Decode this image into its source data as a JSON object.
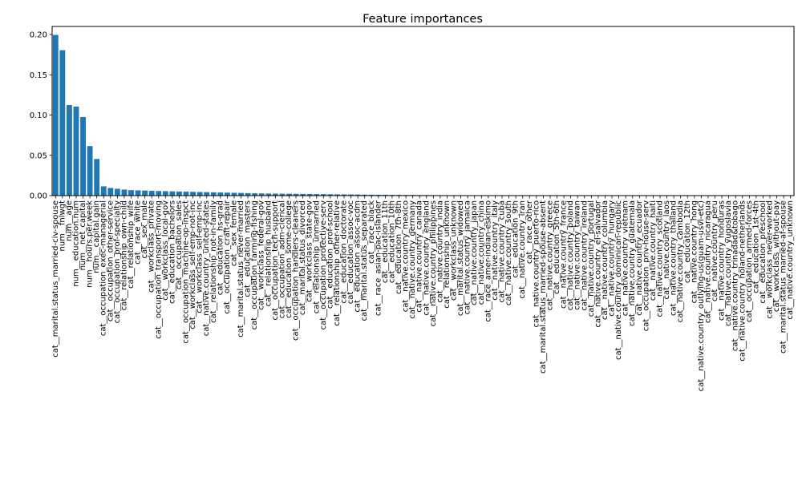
{
  "chart_data": {
    "type": "bar",
    "title": "Feature importances",
    "xlabel": "",
    "ylabel": "",
    "ylim": [
      0,
      0.21
    ],
    "yticks": [
      "0.00",
      "0.05",
      "0.10",
      "0.15",
      "0.20"
    ],
    "grid": false,
    "legend": "none",
    "bar_color": "#1f77b4",
    "categories": [
      "cat__marital.status_married-civ-spouse",
      "num__fnlwgt",
      "num__age",
      "num__education.num",
      "num__net_capital",
      "num__hours.per.week",
      "num__capital.gain",
      "cat__occupation_exec-managerial",
      "cat__occupation_other-service",
      "cat__occupation_prof-specialty",
      "cat__relationship_own-child",
      "cat__relationship_wife",
      "cat__race_white",
      "cat__sex_male",
      "cat__workclass_private",
      "cat__occupation_transport-moving",
      "cat__workclass_local-gov",
      "cat__education_bachelors",
      "cat__occupation_sales",
      "cat__occupation_machine-op-inspct",
      "cat__workclass_self-emp-not-inc",
      "cat__workclass_self-emp-inc",
      "cat__native.country_united-states",
      "cat__relationship_not-in-family",
      "cat__education_hs-grad",
      "cat__occupation_craft-repair",
      "cat__sex_female",
      "cat__marital.status_never-married",
      "cat__education_masters",
      "cat__occupation_farming-fishing",
      "cat__workclass_federal-gov",
      "cat__relationship_husband",
      "cat__occupation_tech-support",
      "cat__occupation_adm-clerical",
      "cat__education_some-college",
      "cat__occupation_handlers-cleaners",
      "cat__marital.status_divorced",
      "cat__workclass_state-gov",
      "cat__relationship_unmarried",
      "cat__occupation_protective-serv",
      "cat__education_prof-school",
      "cat__relationship_other-relative",
      "cat__education_doctorate",
      "cat__education_assoc-voc",
      "cat__education_assoc-acdm",
      "cat__marital.status_separated",
      "cat__race_black",
      "cat__race_asian-pac-islander",
      "cat__education_11th",
      "cat__education_10th",
      "cat__education_7th-8th",
      "cat__native.country_mexico",
      "cat__native.country_germany",
      "cat__native.country_canada",
      "cat__native.country_england",
      "cat__native.country_philippines",
      "cat__native.country_india",
      "cat__relationship_unknown",
      "cat__workclass_unknown",
      "cat__marital.status_widowed",
      "cat__native.country_jamaica",
      "cat__native.country_japan",
      "cat__native.country_china",
      "cat__race_amer-indian-eskimo",
      "cat__native.country_italy",
      "cat__native.country_cuba",
      "cat__native.country_south",
      "cat__education_9th",
      "cat__native.country_iran",
      "cat__race_other",
      "cat__native.country_puerto-rico",
      "cat__marital.status_married-spouse-absent",
      "cat__native.country_greece",
      "cat__education_5th-6th",
      "cat__native.country_france",
      "cat__native.country_poland",
      "cat__native.country_taiwan",
      "cat__native.country_ireland",
      "cat__native.country_portugal",
      "cat__native.country_el-salvador",
      "cat__native.country_columbia",
      "cat__native.country_hungary",
      "cat__native.country_dominican-republic",
      "cat__native.country_vietnam",
      "cat__native.country_guatemala",
      "cat__native.country_ecuador",
      "cat__occupation_priv-house-serv",
      "cat__native.country_haiti",
      "cat__native.country_scotland",
      "cat__native.country_laos",
      "cat__native.country_thailand",
      "cat__native.country_cambodia",
      "cat__education_12th",
      "cat__native.country_hong",
      "cat__native.country_outlying-us(guam-usvi-etc)",
      "cat__native.country_nicaragua",
      "cat__native.country_peru",
      "cat__native.country_honduras",
      "cat__native.country_yugoslavia",
      "cat__native.country_trinadad&tobago",
      "cat__native.country_holand-netherlands",
      "cat__occupation_armed-forces",
      "cat__education_1st-4th",
      "cat__education_preschool",
      "cat__workclass_never-worked",
      "cat__workclass_without-pay",
      "cat__marital.status_married-af-spouse",
      "cat__native.country_unknown"
    ],
    "values": [
      0.1995,
      0.1805,
      0.1125,
      0.1105,
      0.0975,
      0.0615,
      0.0455,
      0.0115,
      0.0095,
      0.0085,
      0.0075,
      0.0068,
      0.0065,
      0.0063,
      0.006,
      0.0057,
      0.0055,
      0.0053,
      0.0051,
      0.0049,
      0.0047,
      0.0045,
      0.0043,
      0.0041,
      0.0039,
      0.0037,
      0.0035,
      0.0033,
      0.0031,
      0.0029,
      0.0027,
      0.0026,
      0.0025,
      0.0024,
      0.0023,
      0.0022,
      0.0021,
      0.002,
      0.0019,
      0.0018,
      0.0017,
      0.0016,
      0.0015,
      0.0014,
      0.0013,
      0.0012,
      0.0011,
      0.001,
      0.001,
      0.0009,
      0.0009,
      0.0008,
      0.0008,
      0.0007,
      0.0007,
      0.0006,
      0.0006,
      0.0005,
      0.0005,
      0.0004,
      0.0004,
      0.0004,
      0.0003,
      0.0003,
      0.0003,
      0.0003,
      0.0002,
      0.0002,
      0.0002,
      0.0002,
      0.0002,
      0.0001,
      0.0001,
      0.0001,
      0.0001,
      0.0001,
      0.0001,
      0.0001,
      0.0001,
      0.0001,
      0.0,
      0.0,
      0.0,
      0.0,
      0.0,
      0.0,
      0.0,
      0.0,
      0.0,
      0.0,
      0.0,
      0.0,
      0.0,
      0.0,
      0.0,
      0.0,
      0.0,
      0.0,
      0.0,
      0.0,
      0.0,
      0.0,
      0.0,
      0.0,
      0.0,
      0.0,
      0.0,
      0.0
    ]
  }
}
